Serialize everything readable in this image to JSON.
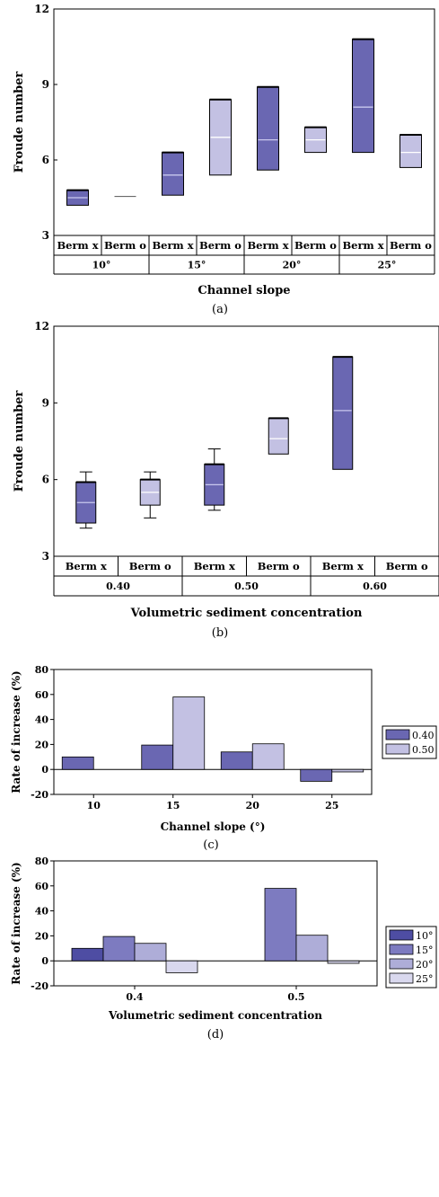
{
  "colors": {
    "dark": "#6a67b2",
    "light": "#c3c1e3",
    "median_dark": "#c9c8ee",
    "median_light": "#ffffff",
    "d_10": "#4e4da3",
    "d_15": "#7d7bc0",
    "d_20": "#aeadd8",
    "d_25": "#d9d8ee"
  },
  "chart_data": [
    {
      "panel": "(a)",
      "type": "box",
      "xlabel": "Channel slope",
      "ylabel": "Froude number",
      "ylim": [
        3,
        12
      ],
      "yticks": [
        3,
        6,
        9,
        12
      ],
      "groups": [
        "10°",
        "15°",
        "20°",
        "25°"
      ],
      "box_labels": [
        "Berm x",
        "Berm o",
        "Berm x",
        "Berm o",
        "Berm x",
        "Berm o",
        "Berm x",
        "Berm o"
      ],
      "boxes": [
        {
          "group": "10°",
          "label": "Berm x",
          "min": 4.2,
          "q1": 4.2,
          "median": 4.5,
          "q3": 4.8,
          "max": 4.8
        },
        {
          "group": "10°",
          "label": "Berm o",
          "min": 4.55,
          "q1": 4.55,
          "median": 4.55,
          "q3": 4.55,
          "max": 4.55
        },
        {
          "group": "15°",
          "label": "Berm x",
          "min": 4.6,
          "q1": 4.6,
          "median": 5.4,
          "q3": 6.3,
          "max": 6.3
        },
        {
          "group": "15°",
          "label": "Berm o",
          "min": 5.4,
          "q1": 5.4,
          "median": 6.9,
          "q3": 8.4,
          "max": 8.4
        },
        {
          "group": "20°",
          "label": "Berm x",
          "min": 5.6,
          "q1": 5.6,
          "median": 6.8,
          "q3": 8.9,
          "max": 8.9
        },
        {
          "group": "20°",
          "label": "Berm o",
          "min": 6.3,
          "q1": 6.3,
          "median": 6.8,
          "q3": 7.3,
          "max": 7.3
        },
        {
          "group": "25°",
          "label": "Berm x",
          "min": 6.3,
          "q1": 6.3,
          "median": 8.1,
          "q3": 10.8,
          "max": 10.8
        },
        {
          "group": "25°",
          "label": "Berm o",
          "min": 5.7,
          "q1": 5.7,
          "median": 6.3,
          "q3": 7.0,
          "max": 7.0
        }
      ]
    },
    {
      "panel": "(b)",
      "type": "box",
      "xlabel": "Volumetric sediment concentration",
      "ylabel": "Froude number",
      "ylim": [
        3,
        12
      ],
      "yticks": [
        3,
        6,
        9,
        12
      ],
      "groups": [
        "0.40",
        "0.50",
        "0.60"
      ],
      "box_labels": [
        "Berm x",
        "Berm o",
        "Berm x",
        "Berm o",
        "Berm x",
        "Berm o"
      ],
      "boxes": [
        {
          "group": "0.40",
          "label": "Berm x",
          "min": 4.1,
          "q1": 4.3,
          "median": 5.1,
          "q3": 5.9,
          "max": 6.3
        },
        {
          "group": "0.40",
          "label": "Berm o",
          "min": 4.5,
          "q1": 5.0,
          "median": 5.5,
          "q3": 6.0,
          "max": 6.3
        },
        {
          "group": "0.50",
          "label": "Berm x",
          "min": 4.8,
          "q1": 5.0,
          "median": 5.8,
          "q3": 6.6,
          "max": 7.2
        },
        {
          "group": "0.50",
          "label": "Berm o",
          "min": 7.0,
          "q1": 7.0,
          "median": 7.6,
          "q3": 8.4,
          "max": 8.4
        },
        {
          "group": "0.60",
          "label": "Berm x",
          "min": 6.4,
          "q1": 6.4,
          "median": 8.7,
          "q3": 10.8,
          "max": 10.8
        }
      ]
    },
    {
      "panel": "(c)",
      "type": "bar",
      "xlabel": "Channel slope (°)",
      "ylabel": "Rate of increase (%)",
      "ylim": [
        -20,
        80
      ],
      "yticks": [
        -20,
        0,
        20,
        40,
        60,
        80
      ],
      "categories": [
        "10",
        "15",
        "20",
        "25"
      ],
      "series": [
        {
          "name": "0.40",
          "values": [
            10,
            19.5,
            14,
            -9.5
          ]
        },
        {
          "name": "0.50",
          "values": [
            null,
            58,
            20.5,
            -2
          ]
        }
      ]
    },
    {
      "panel": "(d)",
      "type": "bar",
      "xlabel": "Volumetric sediment concentration",
      "ylabel": "Rate of increase (%)",
      "ylim": [
        -20,
        80
      ],
      "yticks": [
        -20,
        0,
        20,
        40,
        60,
        80
      ],
      "categories": [
        "0.4",
        "0.5"
      ],
      "series": [
        {
          "name": "10°",
          "values": [
            10,
            null
          ]
        },
        {
          "name": "15°",
          "values": [
            19.5,
            58
          ]
        },
        {
          "name": "20°",
          "values": [
            14,
            20.5
          ]
        },
        {
          "name": "25°",
          "values": [
            -9.5,
            -2
          ]
        }
      ]
    }
  ]
}
